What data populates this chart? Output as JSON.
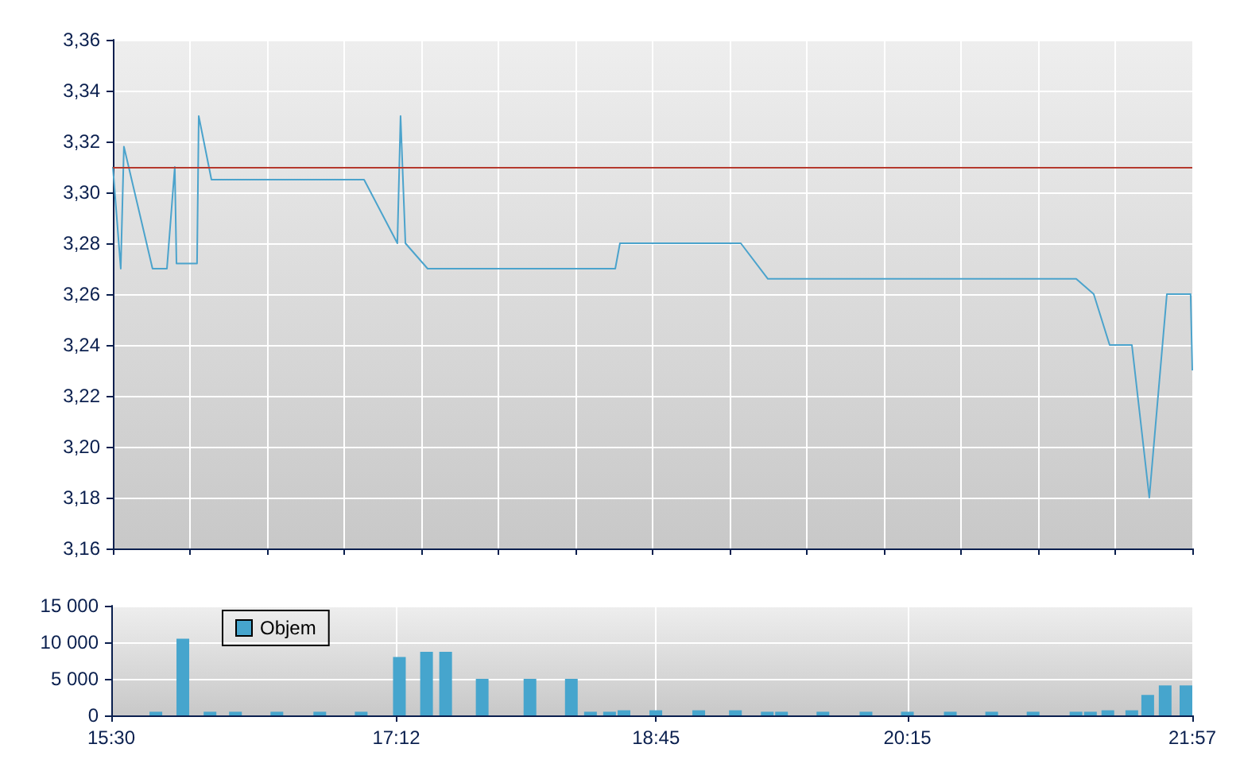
{
  "chart_data": [
    {
      "type": "line",
      "color": "#4ba3cc",
      "x": [
        15.5,
        15.547,
        15.566,
        15.737,
        15.823,
        15.87,
        15.88,
        16.003,
        16.013,
        16.089,
        17.001,
        17.2,
        17.219,
        17.248,
        17.381,
        18.502,
        18.53,
        19.252,
        19.414,
        21.256,
        21.361,
        21.456,
        21.589,
        21.693,
        21.798,
        21.94,
        21.95
      ],
      "values": [
        3.31,
        3.27,
        3.318,
        3.27,
        3.27,
        3.31,
        3.272,
        3.272,
        3.33,
        3.305,
        3.305,
        3.28,
        3.33,
        3.28,
        3.27,
        3.27,
        3.28,
        3.28,
        3.266,
        3.266,
        3.26,
        3.24,
        3.24,
        3.18,
        3.26,
        3.26,
        3.23
      ],
      "xlim": [
        15.5,
        21.95
      ],
      "xticks": [
        15.5,
        15.961,
        16.421,
        16.882,
        17.343,
        17.804,
        18.264,
        18.725,
        19.186,
        19.646,
        20.107,
        20.568,
        21.029,
        21.489,
        21.95
      ],
      "ylim": [
        3.16,
        3.36
      ],
      "yticks": [
        {
          "value": 3.16,
          "label": "3,16"
        },
        {
          "value": 3.18,
          "label": "3,18"
        },
        {
          "value": 3.2,
          "label": "3,20"
        },
        {
          "value": 3.22,
          "label": "3,22"
        },
        {
          "value": 3.24,
          "label": "3,24"
        },
        {
          "value": 3.26,
          "label": "3,26"
        },
        {
          "value": 3.28,
          "label": "3,28"
        },
        {
          "value": 3.3,
          "label": "3,30"
        },
        {
          "value": 3.32,
          "label": "3,32"
        },
        {
          "value": 3.34,
          "label": "3,34"
        },
        {
          "value": 3.36,
          "label": "3,36"
        }
      ],
      "ref_lines": [
        {
          "axis": "y",
          "value": 3.31,
          "color": "#b5392d"
        }
      ],
      "grid": true,
      "tick_labels": "y",
      "marker": "none",
      "line_style": "solid"
    },
    {
      "type": "bar",
      "legend": "top left",
      "x": [
        15.766,
        15.927,
        16.089,
        16.241,
        16.488,
        16.744,
        16.991,
        17.219,
        17.381,
        17.495,
        17.713,
        17.998,
        18.245,
        18.359,
        18.473,
        18.559,
        18.749,
        19.005,
        19.224,
        19.414,
        19.499,
        19.746,
        20.003,
        20.25,
        20.506,
        20.753,
        21.0,
        21.256,
        21.342,
        21.446,
        21.589,
        21.684,
        21.788,
        21.912
      ],
      "series": [
        {
          "name": "Objem",
          "color": "#46a5cd",
          "values": [
            500,
            10500,
            500,
            500,
            500,
            500,
            500,
            8000,
            8700,
            8700,
            5000,
            5000,
            5000,
            500,
            500,
            700,
            700,
            700,
            700,
            500,
            500,
            500,
            500,
            500,
            500,
            500,
            500,
            500,
            500,
            700,
            700,
            2800,
            4100,
            4100
          ]
        }
      ],
      "xlim": [
        15.5,
        21.95
      ],
      "xticks": [
        {
          "value": 15.5,
          "label": "15:30"
        },
        {
          "value": 17.2,
          "label": "17:12"
        },
        {
          "value": 18.75,
          "label": "18:45"
        },
        {
          "value": 20.25,
          "label": "20:15"
        },
        {
          "value": 21.95,
          "label": "21:57"
        }
      ],
      "ylim": [
        0,
        15000
      ],
      "yticks": [
        {
          "value": 0,
          "label": "0"
        },
        {
          "value": 5000,
          "label": "5 000"
        },
        {
          "value": 10000,
          "label": "10 000"
        },
        {
          "value": 15000,
          "label": "15 000"
        }
      ],
      "grid": true
    }
  ]
}
